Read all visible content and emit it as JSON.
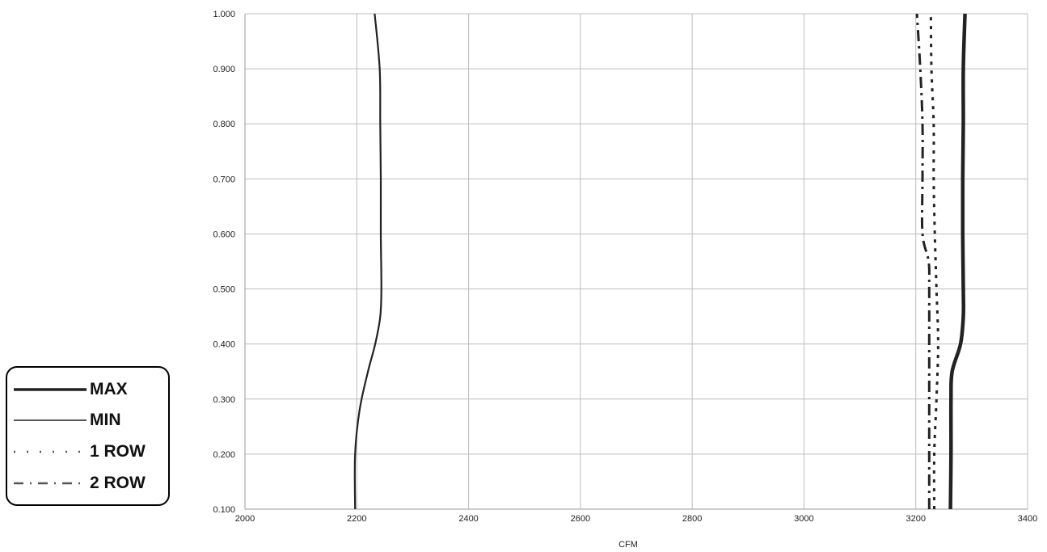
{
  "chart_data": {
    "type": "line",
    "title": "",
    "xlabel": "CFM",
    "ylabel": "",
    "xlim": [
      2000,
      3400
    ],
    "ylim": [
      0.1,
      1.0
    ],
    "x_ticks": [
      "2000",
      "2200",
      "2400",
      "2600",
      "2800",
      "3000",
      "3200",
      "3400"
    ],
    "y_ticks": [
      "0.100",
      "0.200",
      "0.300",
      "0.400",
      "0.500",
      "0.600",
      "0.700",
      "0.800",
      "0.900",
      "1.000"
    ],
    "grid": true,
    "legend_position": "left",
    "series": [
      {
        "name": "MAX",
        "style": "thick-solid",
        "color": "#222222",
        "points": [
          [
            3262,
            0.1
          ],
          [
            3263,
            0.2
          ],
          [
            3263,
            0.3
          ],
          [
            3265,
            0.35
          ],
          [
            3280,
            0.4
          ],
          [
            3285,
            0.45
          ],
          [
            3285,
            0.5
          ],
          [
            3284,
            0.6
          ],
          [
            3284,
            0.7
          ],
          [
            3285,
            0.8
          ],
          [
            3285,
            0.9
          ],
          [
            3288,
            1.0
          ]
        ]
      },
      {
        "name": "MIN",
        "style": "solid",
        "color": "#222222",
        "points": [
          [
            2197,
            0.1
          ],
          [
            2197,
            0.2
          ],
          [
            2205,
            0.28
          ],
          [
            2220,
            0.35
          ],
          [
            2233,
            0.4
          ],
          [
            2242,
            0.45
          ],
          [
            2244,
            0.5
          ],
          [
            2243,
            0.6
          ],
          [
            2243,
            0.7
          ],
          [
            2242,
            0.8
          ],
          [
            2241,
            0.9
          ],
          [
            2232,
            1.0
          ]
        ]
      },
      {
        "name": "1 ROW",
        "style": "dotted",
        "color": "#222222",
        "points": [
          [
            3233,
            0.1
          ],
          [
            3233,
            0.2
          ],
          [
            3237,
            0.3
          ],
          [
            3240,
            0.4
          ],
          [
            3237,
            0.5
          ],
          [
            3234,
            0.6
          ],
          [
            3232,
            0.7
          ],
          [
            3232,
            0.8
          ],
          [
            3228,
            0.9
          ],
          [
            3227,
            1.0
          ]
        ]
      },
      {
        "name": "2 ROW",
        "style": "dashdot",
        "color": "#222222",
        "points": [
          [
            3224,
            0.1
          ],
          [
            3224,
            0.2
          ],
          [
            3224,
            0.3
          ],
          [
            3224,
            0.4
          ],
          [
            3224,
            0.5
          ],
          [
            3223,
            0.55
          ],
          [
            3212,
            0.6
          ],
          [
            3212,
            0.7
          ],
          [
            3212,
            0.8
          ],
          [
            3208,
            0.9
          ],
          [
            3202,
            1.0
          ]
        ]
      }
    ]
  }
}
